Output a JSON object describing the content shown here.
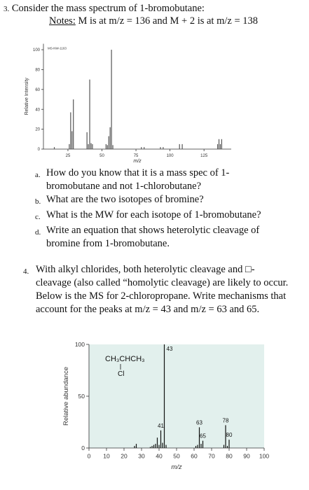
{
  "q3": {
    "number": "3.",
    "text": "Consider the mass spectrum of 1-bromobutane:",
    "notes_label": "Notes:",
    "notes_text": "M is at m/z = 136 and M + 2 is at m/z = 138",
    "parts": [
      {
        "letter": "a.",
        "text": "How do you know that it is a mass spec of 1-bromobutane and not 1-chlorobutane?"
      },
      {
        "letter": "b.",
        "text": "What are the two isotopes of bromine?"
      },
      {
        "letter": "c.",
        "text": "What is the MW for each isotope of 1-bromobutane?"
      },
      {
        "letter": "d.",
        "text": "Write an equation that shows heterolytic cleavage of bromine from 1-bromobutane."
      }
    ]
  },
  "q4": {
    "number": "4.",
    "text": "With alkyl chlorides, both heterolytic cleavage and □-cleavage (also called “homolytic cleavage) are likely to occur. Below is the MS for 2-chloropropane. Write mechanisms that account for the peaks at m/z = 43 and m/z = 63 and 65."
  },
  "chart_data": [
    {
      "type": "bar",
      "code": "MS-NW-1163",
      "x_label": "m/z",
      "y_label": "Relative Intensity",
      "x": [
        15,
        26,
        27,
        28,
        29,
        39,
        40,
        41,
        42,
        43,
        53,
        54,
        55,
        56,
        57,
        58,
        79,
        81,
        93,
        95,
        107,
        109,
        135,
        136,
        137,
        138
      ],
      "values": [
        2,
        5,
        37,
        18,
        50,
        17,
        5,
        70,
        6,
        5,
        5,
        4,
        13,
        22,
        100,
        4,
        2,
        2,
        2,
        2,
        5,
        5,
        5,
        10,
        5,
        10
      ],
      "color": "#555555",
      "xlim": [
        7,
        145
      ],
      "ylim": [
        0,
        106
      ],
      "xticks": [
        25,
        50,
        75,
        100,
        125
      ],
      "yticks": [
        0,
        20,
        40,
        60,
        80,
        100
      ]
    },
    {
      "type": "bar",
      "formula": "CH₃CHCH₃",
      "substituent": "Cl",
      "x_label": "m/z",
      "y_label": "Relative abundance",
      "x": [
        26,
        27,
        35,
        36,
        37,
        38,
        39,
        40,
        41,
        42,
        43,
        44,
        61,
        62,
        63,
        64,
        65,
        77,
        78,
        79,
        80
      ],
      "values": [
        2,
        4,
        1,
        2,
        3,
        4,
        10,
        3,
        17,
        5,
        100,
        3,
        2,
        3,
        20,
        4,
        7,
        3,
        22,
        2,
        8
      ],
      "color": "#111111",
      "plot_background": "#e2f0ed",
      "annotations": [
        {
          "x": 43,
          "text": "43"
        },
        {
          "x": 41,
          "text": "41"
        },
        {
          "x": 63,
          "text": "63"
        },
        {
          "x": 65,
          "text": "65"
        },
        {
          "x": 78,
          "text": "78"
        },
        {
          "x": 80,
          "text": "80"
        }
      ],
      "xlim": [
        0,
        100
      ],
      "ylim": [
        0,
        100
      ],
      "xticks": [
        0,
        10,
        20,
        30,
        40,
        50,
        60,
        70,
        80,
        90,
        100
      ],
      "yticks": [
        0,
        50,
        100
      ]
    }
  ]
}
